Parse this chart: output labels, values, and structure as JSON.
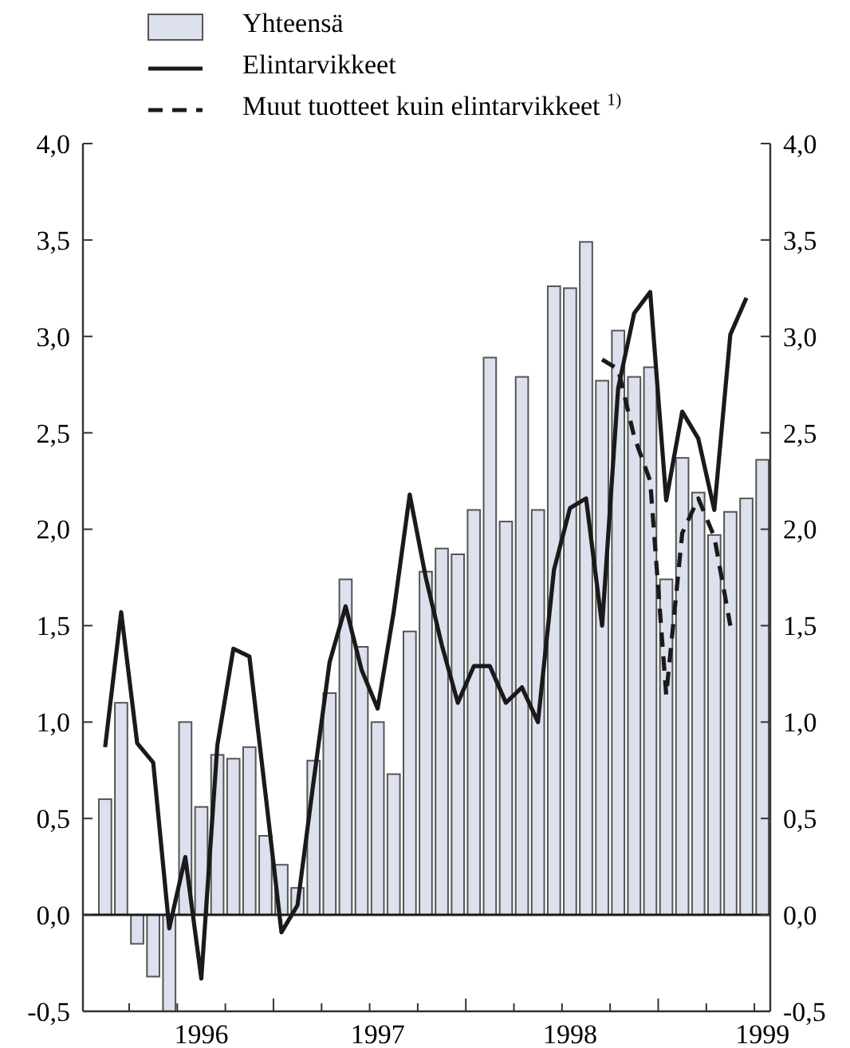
{
  "chart_data": {
    "type": "bar",
    "categories": [
      null,
      null,
      null,
      null,
      null,
      null,
      "1996",
      null,
      null,
      null,
      null,
      null,
      null,
      null,
      null,
      null,
      null,
      "1997",
      null,
      null,
      null,
      null,
      null,
      null,
      null,
      null,
      null,
      null,
      null,
      "1998",
      null,
      null,
      null,
      null,
      null,
      null,
      null,
      null,
      null,
      null,
      null,
      "1999"
    ],
    "series": [
      {
        "name": "Yhteensä",
        "color": "#dde1ee",
        "values": [
          0.6,
          1.1,
          -0.15,
          -0.32,
          -0.5,
          1.0,
          0.56,
          0.83,
          0.81,
          0.87,
          0.41,
          0.26,
          0.14,
          0.8,
          1.15,
          1.74,
          1.39,
          1.0,
          0.73,
          1.47,
          1.78,
          1.9,
          1.87,
          2.1,
          2.89,
          2.04,
          2.79,
          2.1,
          3.26,
          3.25,
          3.49,
          2.77,
          3.03,
          2.79,
          2.84,
          1.74,
          2.37,
          2.19,
          1.97,
          2.09,
          2.16,
          2.36
        ]
      },
      {
        "name": "Elintarvikkeet",
        "type": "line",
        "color": "#1a1a1a",
        "line_style": "solid",
        "values": [
          0.87,
          1.57,
          0.89,
          0.79,
          -0.07,
          0.3,
          -0.33,
          0.88,
          1.38,
          1.34,
          0.63,
          -0.09,
          0.05,
          0.69,
          1.31,
          1.6,
          1.27,
          1.07,
          1.57,
          2.18,
          1.75,
          1.4,
          1.1,
          1.29,
          1.29,
          1.1,
          1.18,
          1.0,
          1.79,
          2.11,
          2.16,
          1.5,
          2.73,
          3.12,
          3.23,
          2.15,
          2.61,
          2.47,
          2.1,
          3.01,
          3.2,
          null
        ]
      },
      {
        "name": "Muut tuotteet kuin elintarvikkeet $^{1)}$",
        "type": "line",
        "color": "#1a1a1a",
        "line_style": "dashed",
        "values": [
          null,
          null,
          null,
          null,
          null,
          null,
          null,
          null,
          null,
          null,
          null,
          null,
          null,
          null,
          null,
          null,
          null,
          null,
          null,
          null,
          null,
          null,
          null,
          null,
          null,
          null,
          null,
          null,
          null,
          null,
          null,
          2.88,
          2.83,
          2.48,
          2.25,
          1.14,
          1.98,
          2.16,
          1.96,
          1.5,
          null,
          null
        ]
      }
    ],
    "ylim": [
      -0.5,
      4
    ],
    "yticks": [
      {
        "value": -0.5,
        "label": "-0,5"
      },
      {
        "value": 0,
        "label": "0,0"
      },
      {
        "value": 0.5,
        "label": "0,5"
      },
      {
        "value": 1,
        "label": "1,0"
      },
      {
        "value": 1.5,
        "label": "1,5"
      },
      {
        "value": 2,
        "label": "2,0"
      },
      {
        "value": 2.5,
        "label": "2,5"
      },
      {
        "value": 3,
        "label": "3,0"
      },
      {
        "value": 3.5,
        "label": "3,5"
      },
      {
        "value": 4,
        "label": "4,0"
      }
    ],
    "y2lim": [
      -0.5,
      4
    ],
    "y2ticks": [
      {
        "value": -0.5,
        "label": "-0,5"
      },
      {
        "value": 0,
        "label": "0,0"
      },
      {
        "value": 0.5,
        "label": "0,5"
      },
      {
        "value": 1,
        "label": "1,0"
      },
      {
        "value": 1.5,
        "label": "1,5"
      },
      {
        "value": 2,
        "label": "2,0"
      },
      {
        "value": 2.5,
        "label": "2,5"
      },
      {
        "value": 3,
        "label": "3,0"
      },
      {
        "value": 3.5,
        "label": "3,5"
      },
      {
        "value": 4,
        "label": "4,0"
      }
    ],
    "ref_lines": [
      {
        "axis": "y",
        "value": 0
      }
    ],
    "legend": "top left",
    "grid": false
  }
}
